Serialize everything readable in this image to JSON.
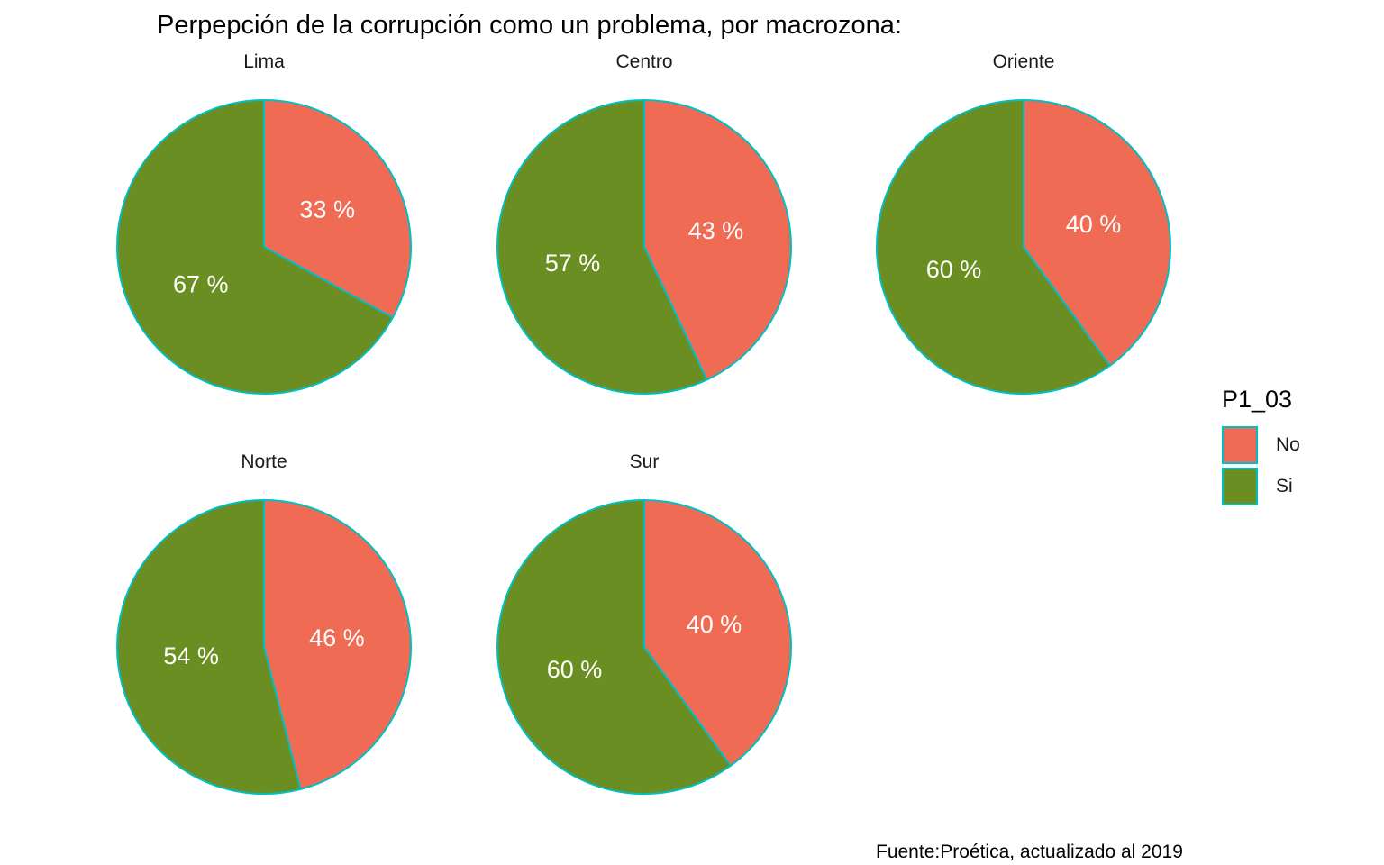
{
  "chart_data": {
    "type": "pie",
    "title": "Perpepción de la corrupción como un problema, por macrozona:",
    "caption": "Fuente:Proética, actualizado al 2019",
    "legend": {
      "title": "P1_03",
      "position": "right",
      "entries": [
        {
          "name": "No",
          "color": "#f06b54"
        },
        {
          "name": "Si",
          "color": "#6b8e23"
        }
      ]
    },
    "slice_border_color": "#00bfc4",
    "facets": [
      {
        "name": "Lima",
        "slices": [
          {
            "category": "No",
            "value": 33,
            "label": "33 %"
          },
          {
            "category": "Si",
            "value": 67,
            "label": "67 %"
          }
        ]
      },
      {
        "name": "Centro",
        "slices": [
          {
            "category": "No",
            "value": 43,
            "label": "43 %"
          },
          {
            "category": "Si",
            "value": 57,
            "label": "57 %"
          }
        ]
      },
      {
        "name": "Oriente",
        "slices": [
          {
            "category": "No",
            "value": 40,
            "label": "40 %"
          },
          {
            "category": "Si",
            "value": 60,
            "label": "60 %"
          }
        ]
      },
      {
        "name": "Norte",
        "slices": [
          {
            "category": "No",
            "value": 46,
            "label": "46 %"
          },
          {
            "category": "Si",
            "value": 54,
            "label": "54 %"
          }
        ]
      },
      {
        "name": "Sur",
        "slices": [
          {
            "category": "No",
            "value": 40,
            "label": "40 %"
          },
          {
            "category": "Si",
            "value": 60,
            "label": "60 %"
          }
        ]
      }
    ]
  }
}
